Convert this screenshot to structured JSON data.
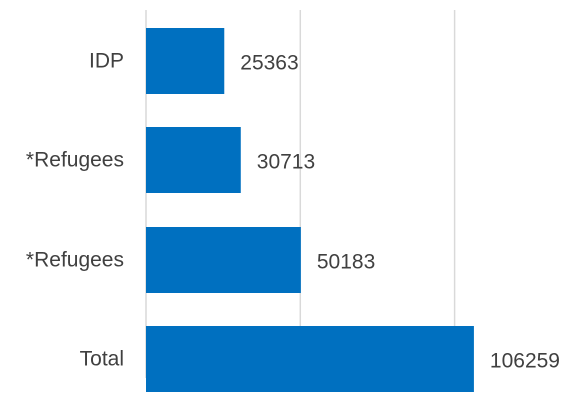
{
  "chart_data": {
    "type": "bar",
    "orientation": "horizontal",
    "categories": [
      "IDP",
      "*Refugees",
      "*Refugees",
      "Total"
    ],
    "values": [
      25363,
      30713,
      50183,
      106259
    ],
    "data_labels": [
      "25363",
      "30713",
      "50183",
      "106259"
    ],
    "xlim": [
      0,
      150000
    ],
    "gridlines_at": [
      0,
      50000,
      100000,
      150000
    ],
    "grid": true,
    "legend": "none",
    "bar_color": "#0070c0",
    "grid_color": "#d9d9d9",
    "text_color": "#404040"
  }
}
